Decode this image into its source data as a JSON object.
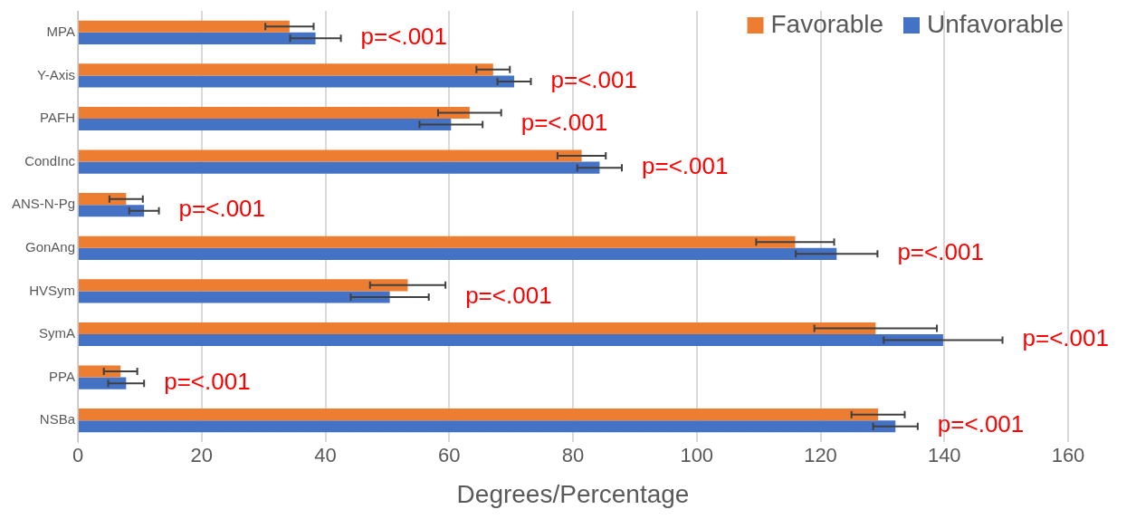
{
  "chart_data": {
    "type": "bar",
    "orientation": "horizontal",
    "xlabel": "Degrees/Percentage",
    "categories": [
      "MPA",
      "Y-Axis",
      "PAFH",
      "CondInc",
      "ANS-N-Pg",
      "GonAng",
      "HVSym",
      "SymA",
      "PPA",
      "NSBa"
    ],
    "series": [
      {
        "name": "Favorable",
        "color": "#ed7d31",
        "values": [
          34.2,
          67.1,
          63.3,
          81.4,
          7.8,
          115.9,
          53.3,
          128.9,
          6.9,
          129.3
        ],
        "errors": [
          3.9,
          2.7,
          5.1,
          3.9,
          2.7,
          6.3,
          6.1,
          9.9,
          2.7,
          4.3
        ]
      },
      {
        "name": "Unfavorable",
        "color": "#4472c4",
        "values": [
          38.4,
          70.5,
          60.3,
          84.3,
          10.7,
          122.6,
          50.4,
          139.8,
          7.8,
          132.1
        ],
        "errors": [
          4.1,
          2.7,
          5.1,
          3.6,
          2.4,
          6.6,
          6.3,
          9.6,
          2.9,
          3.6
        ]
      }
    ],
    "xlim": [
      0,
      160
    ],
    "xticks": [
      0,
      20,
      40,
      60,
      80,
      100,
      120,
      140,
      160
    ],
    "grid": "x",
    "legend": "top right",
    "annotations": [
      "p=<.001",
      "p=<.001",
      "p=<.001",
      "p=<.001",
      "p=<.001",
      "p=<.001",
      "p=<.001",
      "p=<.001",
      "p=<.001",
      "p=<.001"
    ]
  }
}
